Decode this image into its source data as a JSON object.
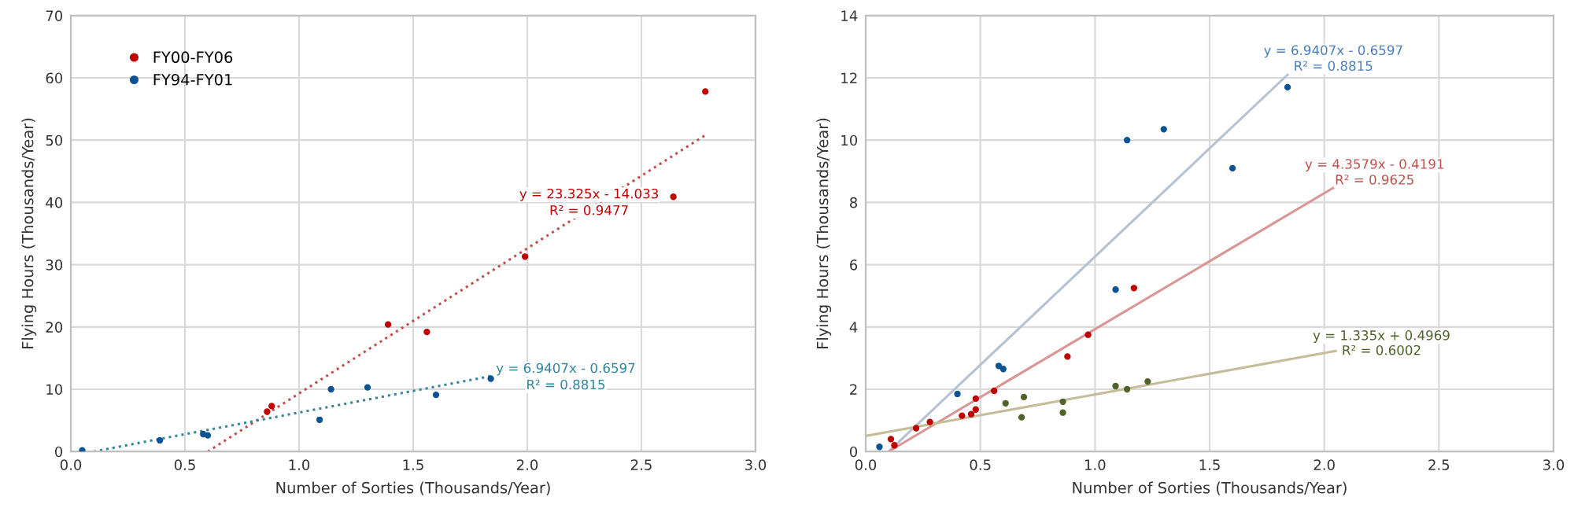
{
  "chart_data": [
    {
      "type": "scatter",
      "xlabel": "Number of Sorties (Thousands/Year)",
      "ylabel": "Flying Hours (Thousands/Year)",
      "xlim": [
        0,
        3
      ],
      "ylim": [
        0,
        70
      ],
      "xticks": [
        {
          "value": 0,
          "label": "0.0"
        },
        0.5,
        {
          "value": 1,
          "label": "1.0"
        },
        1.5,
        {
          "value": 2,
          "label": "2.0"
        },
        2.5,
        {
          "value": 3,
          "label": "3.0"
        }
      ],
      "yticks": [
        0,
        10,
        20,
        30,
        40,
        50,
        60,
        70
      ],
      "grid": true,
      "legend": "top left",
      "marker": "circle",
      "series": [
        {
          "name": "FY00-FY06",
          "color": "#c00000",
          "x": [
            0.86,
            0.88,
            1.39,
            1.56,
            1.99,
            2.64,
            2.78
          ],
          "values": [
            6.4,
            7.3,
            20.4,
            19.2,
            31.3,
            40.9,
            57.8
          ]
        },
        {
          "name": "FY94-FY01",
          "color": "#0b5394",
          "x": [
            0.05,
            0.39,
            0.58,
            0.6,
            1.09,
            1.14,
            1.3,
            1.6,
            1.84
          ],
          "values": [
            0.2,
            1.8,
            2.8,
            2.6,
            5.1,
            10.0,
            10.3,
            9.1,
            11.7
          ]
        },
        {
          "type": "line",
          "color": "#c0504d",
          "line_style": "dotted",
          "marker": "none",
          "x": [
            0.6,
            2.78
          ],
          "values": [
            0,
            50.8
          ]
        },
        {
          "type": "line",
          "color": "#31859c",
          "line_style": "dotted",
          "marker": "none",
          "x": [
            0.1,
            1.84
          ],
          "values": [
            0,
            12.1
          ]
        }
      ],
      "annotations": [
        "y = 23.325x - 14.033",
        "R² = 0.9477",
        "y = 6.9407x - 0.6597",
        "R² = 0.8815"
      ]
    },
    {
      "type": "scatter",
      "xlabel": "Number of Sorties (Thousands/Year)",
      "ylabel": "Flying Hours (Thousands/Year)",
      "xlim": [
        0,
        3
      ],
      "ylim": [
        0,
        14
      ],
      "xticks": [
        {
          "value": 0,
          "label": "0.0"
        },
        0.5,
        {
          "value": 1,
          "label": "1.0"
        },
        1.5,
        {
          "value": 2,
          "label": "2.0"
        },
        2.5,
        {
          "value": 3,
          "label": "3.0"
        }
      ],
      "yticks": [
        0,
        2,
        4,
        6,
        8,
        10,
        12,
        14
      ],
      "grid": true,
      "marker": "circle",
      "series": [
        {
          "color": "#0b5394",
          "x": [
            0.06,
            0.4,
            0.58,
            0.6,
            1.09,
            1.14,
            1.3,
            1.6,
            1.84
          ],
          "values": [
            0.15,
            1.85,
            2.75,
            2.65,
            5.2,
            10.0,
            10.35,
            9.1,
            11.7
          ]
        },
        {
          "color": "#4f6228",
          "x": [
            0.61,
            0.69,
            0.68,
            0.86,
            0.86,
            1.09,
            1.14,
            1.23
          ],
          "values": [
            1.55,
            1.75,
            1.1,
            1.6,
            1.25,
            2.1,
            2.0,
            2.25
          ]
        },
        {
          "color": "#c00000",
          "x": [
            0.11,
            0.125,
            0.22,
            0.28,
            0.42,
            0.46,
            0.48,
            0.48,
            0.56,
            0.88,
            0.97,
            1.17
          ],
          "values": [
            0.4,
            0.2,
            0.75,
            0.95,
            1.15,
            1.2,
            1.35,
            1.7,
            1.95,
            3.05,
            3.75,
            5.25
          ]
        },
        {
          "type": "line",
          "color": "#b4c2d2",
          "line_style": "solid",
          "marker": "none",
          "x": [
            0.1,
            1.84
          ],
          "values": [
            0,
            12.1
          ]
        },
        {
          "type": "line",
          "color": "#d99694",
          "line_style": "solid",
          "marker": "none",
          "x": [
            0.1,
            2.04
          ],
          "values": [
            0,
            8.47
          ]
        },
        {
          "type": "line",
          "color": "#c4bd97",
          "line_style": "solid",
          "marker": "none",
          "x": [
            0,
            2.05
          ],
          "values": [
            0.5,
            3.23
          ]
        }
      ],
      "annotations": [
        "y = 6.9407x - 0.6597",
        "R² = 0.8815",
        "y = 4.3579x - 0.4191",
        "R² = 0.9625",
        "y = 1.335x + 0.4969",
        "R² = 0.6002"
      ]
    }
  ]
}
